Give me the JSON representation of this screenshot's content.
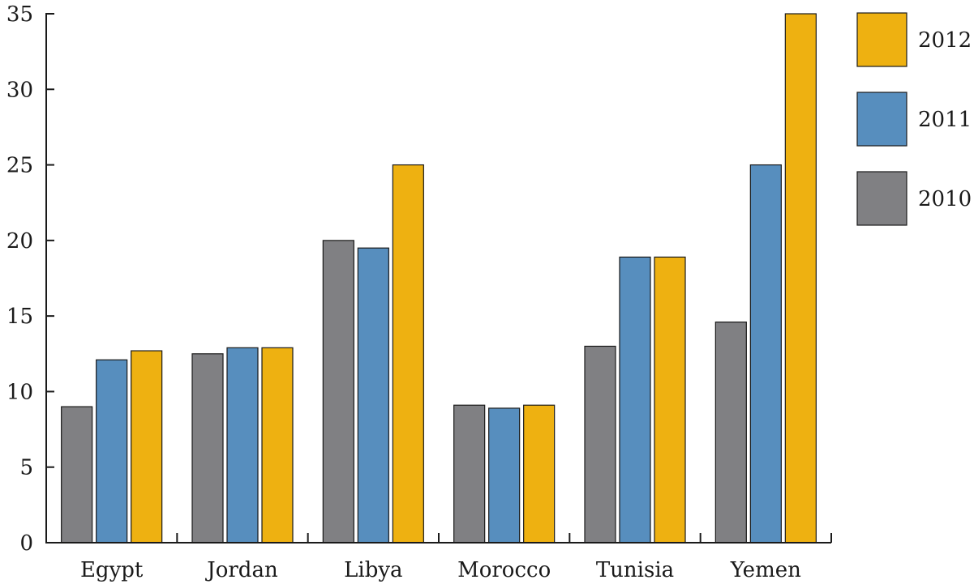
{
  "chart_data": {
    "type": "bar",
    "title": "",
    "xlabel": "",
    "ylabel": "",
    "ylim": [
      0,
      35
    ],
    "yticks": [
      0,
      5,
      10,
      15,
      20,
      25,
      30,
      35
    ],
    "grid": false,
    "legend_position": "top-right",
    "categories": [
      "Egypt",
      "Jordan",
      "Libya",
      "Morocco",
      "Tunisia",
      "Yemen"
    ],
    "series": [
      {
        "name": "2010",
        "color": "#808083",
        "values": [
          9.0,
          12.5,
          20.0,
          9.1,
          13.0,
          14.6
        ]
      },
      {
        "name": "2011",
        "color": "#578ebe",
        "values": [
          12.1,
          12.9,
          19.5,
          8.9,
          18.9,
          25.0
        ]
      },
      {
        "name": "2012",
        "color": "#eeb111",
        "values": [
          12.7,
          12.9,
          25.0,
          9.1,
          18.9,
          35.0
        ]
      }
    ],
    "legend_order": [
      "2012",
      "2011",
      "2010"
    ]
  }
}
